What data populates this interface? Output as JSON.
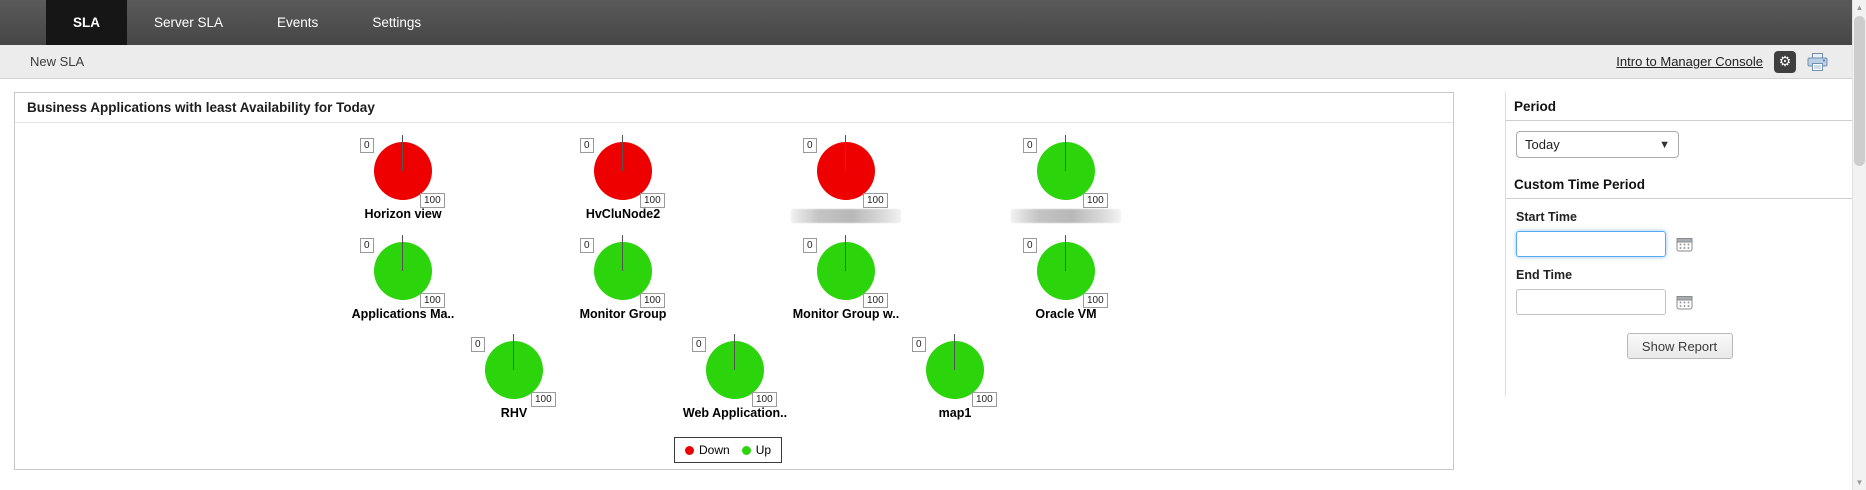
{
  "nav": {
    "tabs": [
      {
        "label": "SLA",
        "active": true
      },
      {
        "label": "Server SLA",
        "active": false
      },
      {
        "label": "Events",
        "active": false
      },
      {
        "label": "Settings",
        "active": false
      }
    ]
  },
  "breadcrumb": {
    "title": "New SLA",
    "link_label": "Intro to Manager Console"
  },
  "panel": {
    "title": "Business Applications with least Availability for Today"
  },
  "chart_data": {
    "type": "pie",
    "title": "Business Applications with least Availability for Today",
    "unit_scale": {
      "min_label": "0",
      "max_label": "100"
    },
    "colors": {
      "down": "#ee0000",
      "up": "#2bd40b"
    },
    "legend": [
      {
        "label": "Down",
        "status": "down"
      },
      {
        "label": "Up",
        "status": "up"
      }
    ],
    "rows": [
      [
        {
          "label": "Horizon view",
          "status": "down"
        },
        {
          "label": "HvCluNode2",
          "status": "down"
        },
        {
          "label": "",
          "status": "down",
          "redacted": true
        },
        {
          "label": "",
          "status": "up",
          "redacted": true
        }
      ],
      [
        {
          "label": "Applications Ma..",
          "status": "up"
        },
        {
          "label": "Monitor Group",
          "status": "up"
        },
        {
          "label": "Monitor Group w..",
          "status": "up"
        },
        {
          "label": "Oracle VM",
          "status": "up"
        }
      ],
      [
        {
          "label": "RHV",
          "status": "up"
        },
        {
          "label": "Web Application..",
          "status": "up"
        },
        {
          "label": "map1",
          "status": "up"
        }
      ]
    ]
  },
  "sidebar": {
    "period_title": "Period",
    "period_value": "Today",
    "custom_title": "Custom Time Period",
    "start_label": "Start Time",
    "start_value": "",
    "end_label": "End Time",
    "end_value": "",
    "show_report_label": "Show Report"
  },
  "colors": {
    "nav_bg": "#4c4c4c",
    "active_tab_bg": "#161616",
    "focus_blue": "#5da8e8"
  }
}
